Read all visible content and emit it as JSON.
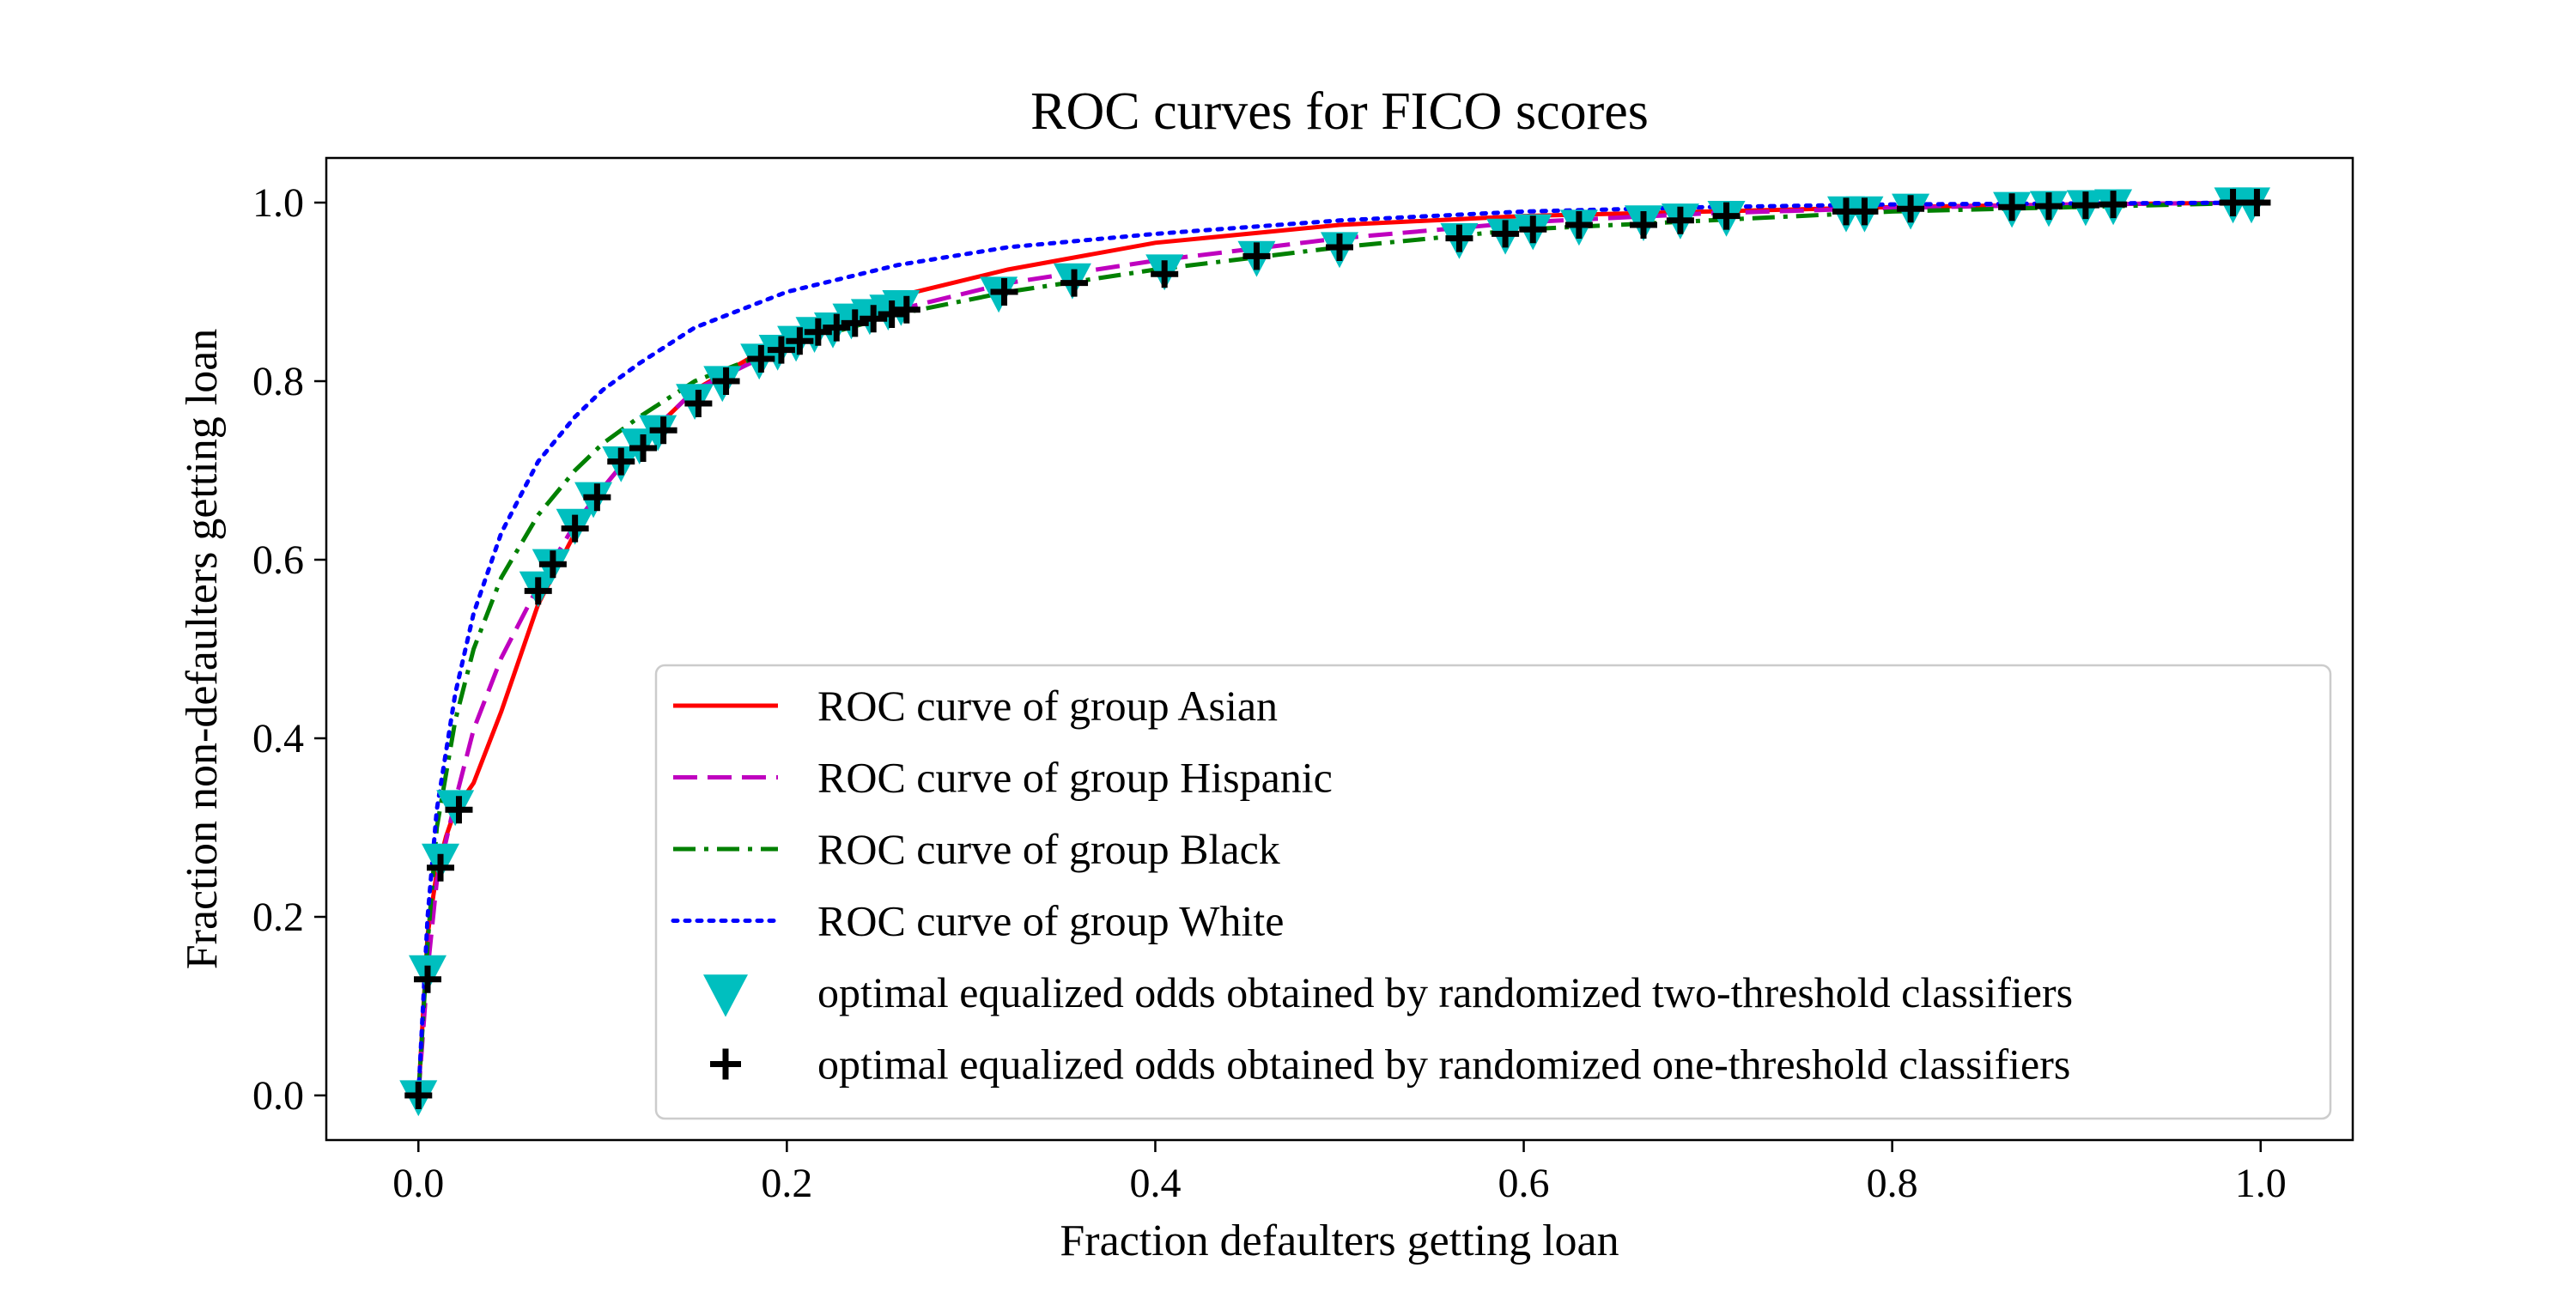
{
  "chart_data": {
    "type": "line",
    "title": "ROC curves for FICO scores",
    "xlabel": "Fraction defaulters getting loan",
    "ylabel": "Fraction non-defaulters getting loan",
    "xlim": [
      -0.05,
      1.05
    ],
    "ylim": [
      -0.05,
      1.05
    ],
    "xticks": [
      "0.0",
      "0.2",
      "0.4",
      "0.6",
      "0.8",
      "1.0"
    ],
    "yticks": [
      "0.0",
      "0.2",
      "0.4",
      "0.6",
      "0.8",
      "1.0"
    ],
    "grid": false,
    "legend_position": "lower-right",
    "series": [
      {
        "name": "ROC curve of group Asian",
        "color": "#ff0000",
        "style": "solid",
        "x": [
          0,
          0.005,
          0.01,
          0.015,
          0.02,
          0.03,
          0.045,
          0.065,
          0.085,
          0.1,
          0.12,
          0.15,
          0.2,
          0.26,
          0.32,
          0.4,
          0.5,
          0.6,
          0.7,
          0.8,
          0.9,
          1.0
        ],
        "y": [
          0,
          0.18,
          0.25,
          0.29,
          0.32,
          0.35,
          0.43,
          0.55,
          0.63,
          0.68,
          0.73,
          0.79,
          0.85,
          0.895,
          0.925,
          0.955,
          0.975,
          0.985,
          0.99,
          0.995,
          0.998,
          1.0
        ]
      },
      {
        "name": "ROC curve of group Hispanic",
        "color": "#bf00bf",
        "style": "dashed",
        "x": [
          0,
          0.005,
          0.01,
          0.02,
          0.03,
          0.045,
          0.065,
          0.085,
          0.1,
          0.12,
          0.15,
          0.2,
          0.26,
          0.32,
          0.4,
          0.5,
          0.6,
          0.7,
          0.8,
          0.9,
          1.0
        ],
        "y": [
          0,
          0.14,
          0.24,
          0.33,
          0.41,
          0.49,
          0.57,
          0.64,
          0.68,
          0.73,
          0.79,
          0.84,
          0.88,
          0.91,
          0.935,
          0.96,
          0.978,
          0.988,
          0.994,
          0.998,
          1.0
        ]
      },
      {
        "name": "ROC curve of group Black",
        "color": "#008000",
        "style": "dashdot",
        "x": [
          0,
          0.005,
          0.01,
          0.02,
          0.03,
          0.045,
          0.065,
          0.085,
          0.1,
          0.12,
          0.15,
          0.2,
          0.26,
          0.32,
          0.4,
          0.5,
          0.6,
          0.7,
          0.8,
          0.9,
          1.0
        ],
        "y": [
          0,
          0.17,
          0.3,
          0.42,
          0.5,
          0.58,
          0.65,
          0.7,
          0.73,
          0.76,
          0.8,
          0.84,
          0.875,
          0.9,
          0.925,
          0.95,
          0.97,
          0.98,
          0.99,
          0.995,
          1.0
        ]
      },
      {
        "name": "ROC curve of group White",
        "color": "#0000ff",
        "style": "dotted",
        "x": [
          0,
          0.005,
          0.01,
          0.02,
          0.03,
          0.045,
          0.065,
          0.085,
          0.1,
          0.12,
          0.15,
          0.2,
          0.26,
          0.32,
          0.4,
          0.5,
          0.6,
          0.7,
          0.8,
          0.9,
          1.0
        ],
        "y": [
          0,
          0.2,
          0.32,
          0.45,
          0.54,
          0.63,
          0.71,
          0.76,
          0.79,
          0.82,
          0.86,
          0.9,
          0.93,
          0.95,
          0.965,
          0.98,
          0.99,
          0.995,
          0.998,
          0.999,
          1.0
        ]
      }
    ],
    "markers": [
      {
        "name": "optimal equalized odds obtained by randomized two-threshold classifiers",
        "color": "#00bfbf",
        "shape": "triangle-down",
        "x": [
          0.0,
          0.005,
          0.012,
          0.02,
          0.065,
          0.072,
          0.085,
          0.095,
          0.11,
          0.12,
          0.13,
          0.15,
          0.165,
          0.185,
          0.195,
          0.205,
          0.215,
          0.225,
          0.235,
          0.245,
          0.255,
          0.262,
          0.315,
          0.355,
          0.405,
          0.455,
          0.5,
          0.565,
          0.59,
          0.605,
          0.63,
          0.665,
          0.685,
          0.71,
          0.775,
          0.785,
          0.81,
          0.865,
          0.885,
          0.905,
          0.92,
          0.985,
          0.995
        ],
        "y": [
          0.0,
          0.14,
          0.265,
          0.325,
          0.57,
          0.595,
          0.64,
          0.67,
          0.71,
          0.73,
          0.745,
          0.78,
          0.8,
          0.825,
          0.835,
          0.845,
          0.855,
          0.86,
          0.87,
          0.875,
          0.88,
          0.885,
          0.9,
          0.915,
          0.925,
          0.94,
          0.95,
          0.96,
          0.965,
          0.97,
          0.975,
          0.98,
          0.982,
          0.985,
          0.99,
          0.99,
          0.993,
          0.995,
          0.996,
          0.997,
          0.998,
          1.0,
          1.0
        ]
      },
      {
        "name": "optimal equalized odds obtained by randomized one-threshold classifiers",
        "color": "#000000",
        "shape": "plus",
        "x": [
          0.0,
          0.005,
          0.012,
          0.022,
          0.065,
          0.073,
          0.085,
          0.097,
          0.11,
          0.122,
          0.133,
          0.152,
          0.167,
          0.186,
          0.197,
          0.207,
          0.217,
          0.227,
          0.237,
          0.247,
          0.257,
          0.265,
          0.318,
          0.356,
          0.405,
          0.455,
          0.5,
          0.565,
          0.59,
          0.605,
          0.63,
          0.665,
          0.685,
          0.71,
          0.775,
          0.785,
          0.81,
          0.865,
          0.885,
          0.905,
          0.92,
          0.985,
          0.998
        ],
        "y": [
          0.0,
          0.13,
          0.255,
          0.32,
          0.565,
          0.595,
          0.635,
          0.67,
          0.71,
          0.725,
          0.745,
          0.775,
          0.8,
          0.825,
          0.835,
          0.845,
          0.855,
          0.86,
          0.865,
          0.87,
          0.875,
          0.88,
          0.9,
          0.91,
          0.92,
          0.94,
          0.95,
          0.96,
          0.965,
          0.97,
          0.975,
          0.975,
          0.98,
          0.985,
          0.99,
          0.99,
          0.993,
          0.995,
          0.996,
          0.997,
          0.998,
          1.0,
          1.0
        ]
      }
    ]
  }
}
